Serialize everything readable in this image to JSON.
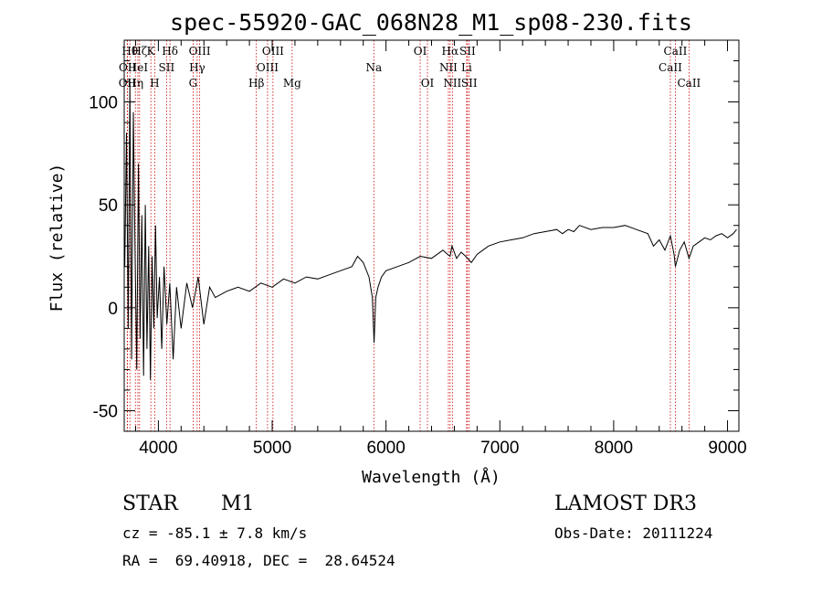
{
  "chart_data": {
    "type": "line",
    "title": "spec-55920-GAC_068N28_M1_sp08-230.fits",
    "xlabel": "Wavelength (Å)",
    "ylabel": "Flux (relative)",
    "xlim": [
      3700,
      9100
    ],
    "ylim": [
      -60,
      130
    ],
    "xticks": [
      4000,
      5000,
      6000,
      7000,
      8000,
      9000
    ],
    "yticks": [
      -50,
      0,
      50,
      100
    ],
    "grid": false,
    "line_color": "#000000",
    "marker_color": "#cc0000",
    "series": [
      {
        "x": [
          3705,
          3720,
          3735,
          3750,
          3765,
          3780,
          3795,
          3810,
          3825,
          3840,
          3855,
          3870,
          3885,
          3900,
          3915,
          3930,
          3945,
          3960,
          3975,
          3990,
          4010,
          4030,
          4050,
          4075,
          4100,
          4130,
          4160,
          4200,
          4250,
          4300,
          4350,
          4400,
          4450,
          4500,
          4600,
          4700,
          4800,
          4900,
          5000,
          5100,
          5200,
          5300,
          5400,
          5500,
          5600,
          5700,
          5750,
          5800,
          5850,
          5880,
          5895,
          5910,
          5930,
          5960,
          6000,
          6100,
          6200,
          6300,
          6400,
          6450,
          6500,
          6540,
          6563,
          6580,
          6620,
          6660,
          6700,
          6750,
          6800,
          6850,
          6900,
          7000,
          7100,
          7200,
          7300,
          7400,
          7500,
          7550,
          7600,
          7650,
          7700,
          7800,
          7900,
          8000,
          8100,
          8200,
          8300,
          8350,
          8400,
          8450,
          8498,
          8530,
          8542,
          8580,
          8620,
          8662,
          8700,
          8750,
          8800,
          8850,
          8900,
          8950,
          9000,
          9050,
          9080
        ],
        "y": [
          20,
          85,
          -10,
          110,
          -25,
          95,
          30,
          -30,
          70,
          -15,
          45,
          -33,
          50,
          -20,
          30,
          -35,
          25,
          -10,
          40,
          -5,
          15,
          -20,
          20,
          -8,
          12,
          -25,
          10,
          -10,
          12,
          0,
          15,
          -8,
          10,
          5,
          8,
          10,
          8,
          12,
          10,
          14,
          12,
          15,
          14,
          16,
          18,
          20,
          25,
          22,
          15,
          5,
          -17,
          5,
          10,
          15,
          18,
          20,
          22,
          25,
          24,
          26,
          28,
          26,
          25,
          30,
          24,
          27,
          25,
          22,
          26,
          28,
          30,
          32,
          33,
          34,
          36,
          37,
          38,
          36,
          38,
          37,
          40,
          38,
          39,
          39,
          40,
          38,
          36,
          30,
          33,
          28,
          35,
          26,
          20,
          28,
          32,
          24,
          30,
          32,
          34,
          33,
          35,
          36,
          34,
          36,
          38
        ]
      }
    ],
    "lines": [
      {
        "label": "OII",
        "wl": 3727,
        "row": 2
      },
      {
        "label": "OII",
        "wl": 3729,
        "row": 1
      },
      {
        "label": "Hθ",
        "wl": 3750,
        "row": 0
      },
      {
        "label": "Hη",
        "wl": 3798,
        "row": 2
      },
      {
        "label": "HeI",
        "wl": 3820,
        "row": 1
      },
      {
        "label": "Hζ",
        "wl": 3835,
        "row": 0
      },
      {
        "label": "K",
        "wl": 3934,
        "row": 0
      },
      {
        "label": "H",
        "wl": 3968,
        "row": 2
      },
      {
        "label": "SII",
        "wl": 4072,
        "row": 1
      },
      {
        "label": "Hδ",
        "wl": 4102,
        "row": 0
      },
      {
        "label": "G",
        "wl": 4305,
        "row": 2
      },
      {
        "label": "Hγ",
        "wl": 4341,
        "row": 1
      },
      {
        "label": "OIII",
        "wl": 4363,
        "row": 0
      },
      {
        "label": "Hβ",
        "wl": 4861,
        "row": 2
      },
      {
        "label": "OIII",
        "wl": 4959,
        "row": 1
      },
      {
        "label": "OIII",
        "wl": 5007,
        "row": 0
      },
      {
        "label": "Mg",
        "wl": 5175,
        "row": 2
      },
      {
        "label": "Na",
        "wl": 5893,
        "row": 1
      },
      {
        "label": "OI",
        "wl": 6300,
        "row": 0
      },
      {
        "label": "OI",
        "wl": 6364,
        "row": 2
      },
      {
        "label": "NII",
        "wl": 6548,
        "row": 1
      },
      {
        "label": "Hα",
        "wl": 6563,
        "row": 0
      },
      {
        "label": "NII",
        "wl": 6583,
        "row": 2
      },
      {
        "label": "Li",
        "wl": 6708,
        "row": 1
      },
      {
        "label": "SII",
        "wl": 6716,
        "row": 0
      },
      {
        "label": "SII",
        "wl": 6731,
        "row": 2
      },
      {
        "label": "CaII",
        "wl": 8498,
        "row": 1
      },
      {
        "label": "CaII",
        "wl": 8542,
        "row": 0
      },
      {
        "label": "CaII",
        "wl": 8662,
        "row": 2
      }
    ]
  },
  "info": {
    "class": "STAR",
    "subclass": "M1",
    "cz": "cz = -85.1 ± 7.8 km/s",
    "radec": "RA =  69.40918, DEC =  28.64524",
    "survey": "LAMOST DR3",
    "obsdate": "Obs-Date: 20111224"
  }
}
